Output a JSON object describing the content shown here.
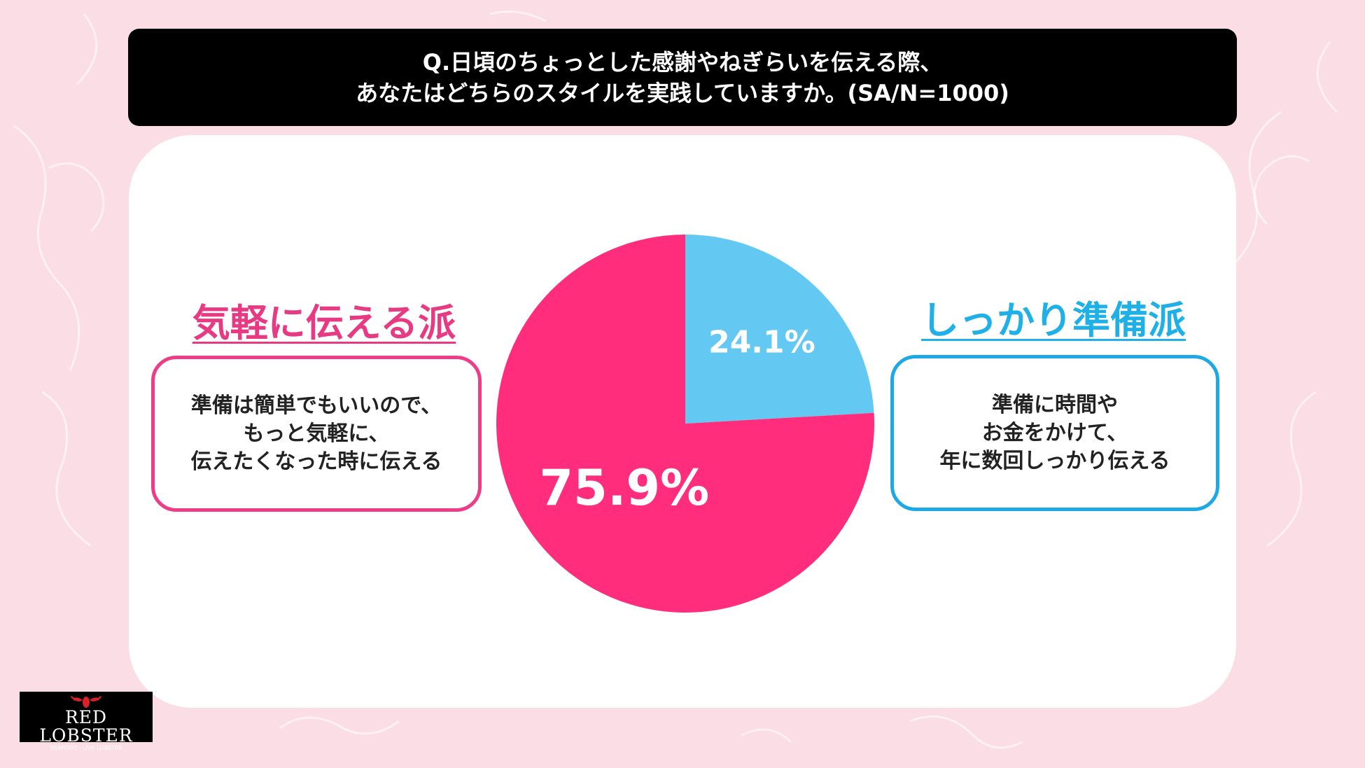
{
  "question": {
    "line1": "Q.日頃のちょっとした感謝やねぎらいを伝える際、",
    "line2": "あなたはどちらのスタイルを実践していますか。(SA/N=1000)"
  },
  "left_panel": {
    "title": "気軽に伝える派",
    "desc_line1": "準備は簡単でもいいので、",
    "desc_line2": "もっと気軽に、",
    "desc_line3": "伝えたくなった時に伝える"
  },
  "right_panel": {
    "title": "しっかり準備派",
    "desc_line1": "準備に時間や",
    "desc_line2": "お金をかけて、",
    "desc_line3": "年に数回しっかり伝える"
  },
  "logo": {
    "name": "RED LOBSTER",
    "sub": "SEAFOOD・LIVE LOBSTER"
  },
  "colors": {
    "background": "#fbdde6",
    "pink": "#ff2d7c",
    "blue": "#63c9f3",
    "pink_text": "#e83a82",
    "blue_text": "#1fb0e8"
  },
  "chart_data": {
    "type": "pie",
    "start": "12 o'clock",
    "direction": "clockwise",
    "slices": [
      {
        "label": "24.1%",
        "value": 24.1,
        "color": "#63c9f3"
      },
      {
        "label": "75.9%",
        "value": 75.9,
        "color": "#ff2d7c"
      }
    ]
  }
}
